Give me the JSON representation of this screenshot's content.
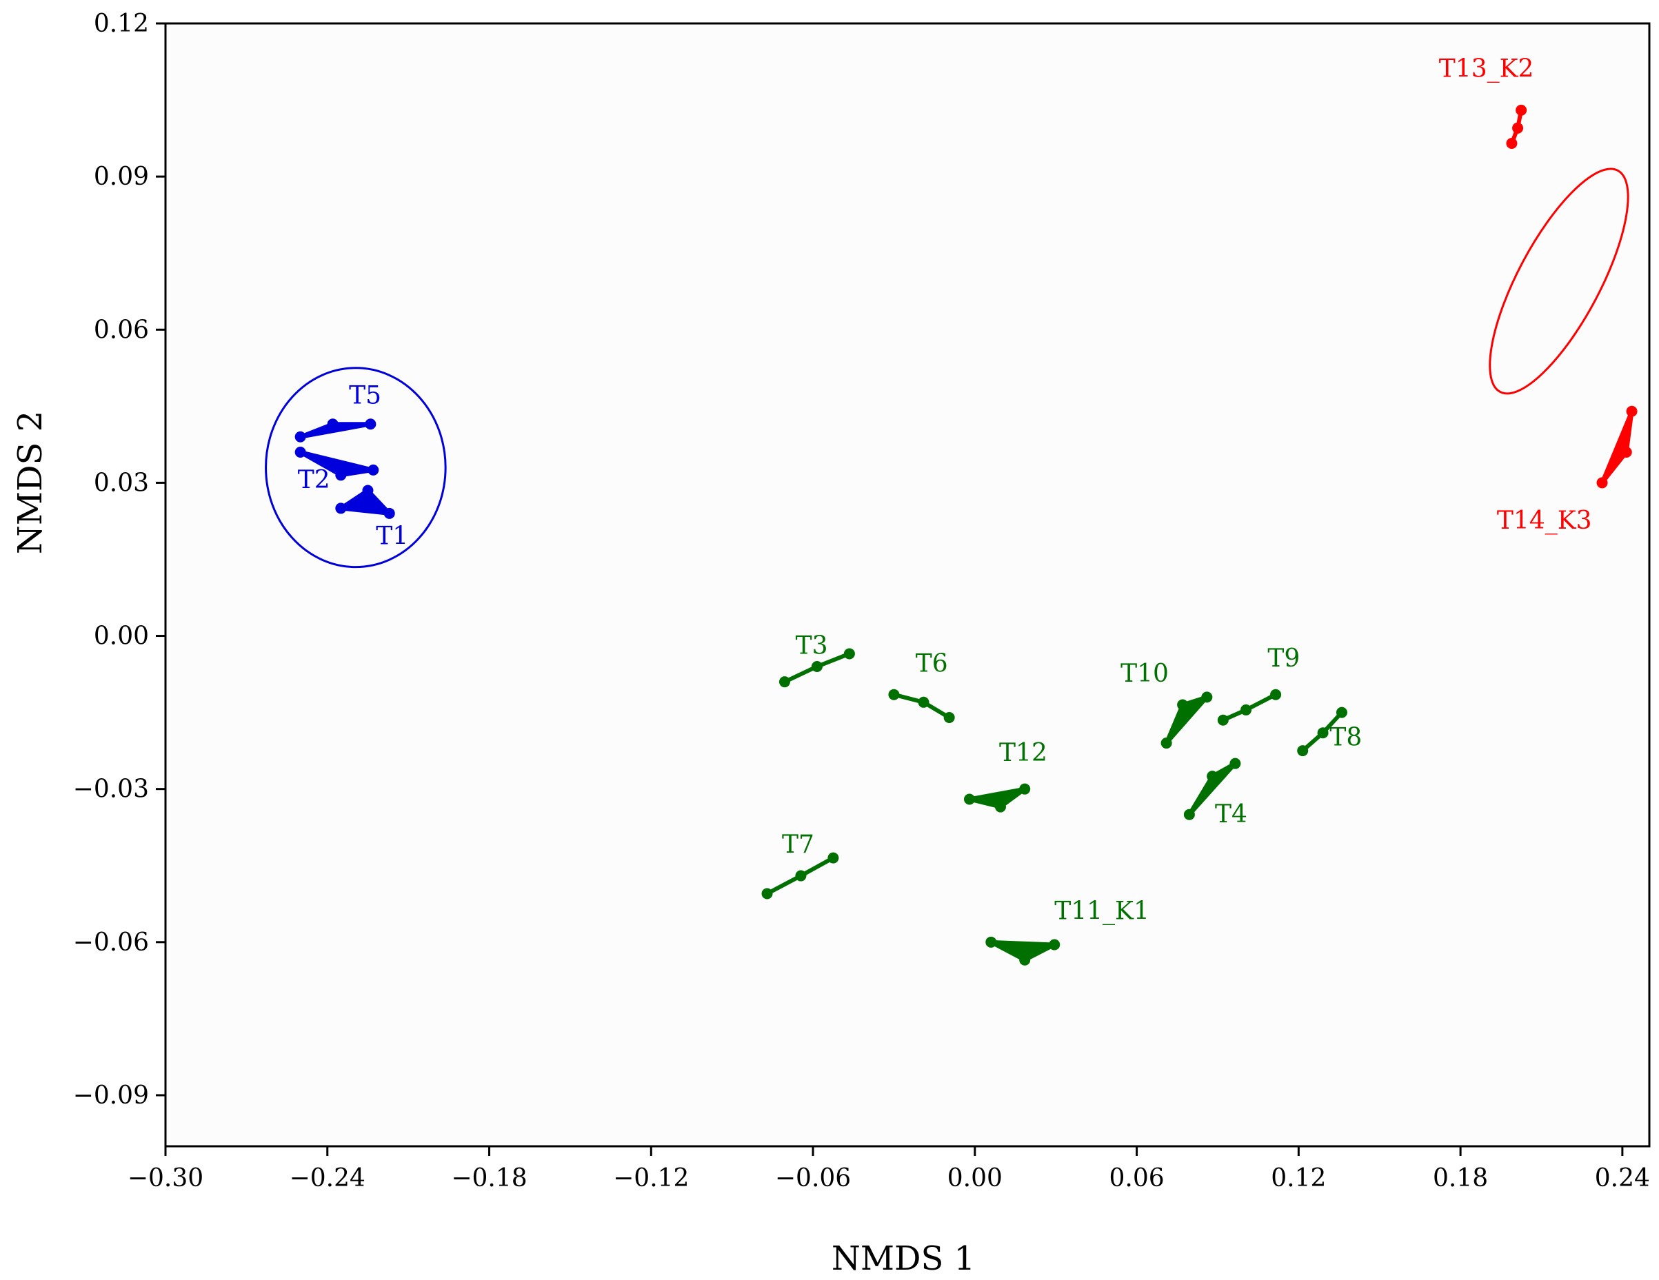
{
  "chart_data": {
    "type": "scatter",
    "title": "",
    "xlabel": "NMDS 1",
    "ylabel": "NMDS 2",
    "xlim": [
      -0.3,
      0.25
    ],
    "ylim": [
      -0.1,
      0.12
    ],
    "xticks": [
      -0.3,
      -0.24,
      -0.18,
      -0.12,
      -0.06,
      0.0,
      0.06,
      0.12,
      0.18,
      0.24
    ],
    "xtick_labels": [
      "−0.30",
      "−0.24",
      "−0.18",
      "−0.12",
      "−0.06",
      "0.00",
      "0.06",
      "0.12",
      "0.18",
      "0.24"
    ],
    "yticks": [
      0.12,
      0.09,
      0.06,
      0.03,
      0.0,
      -0.03,
      -0.06,
      -0.09
    ],
    "ytick_labels": [
      "0.12",
      "0.09",
      "0.06",
      "0.03",
      "0.00",
      "−0.03",
      "−0.06",
      "−0.09"
    ],
    "grid": false,
    "colors": {
      "blue": "#0000dd",
      "green": "#007000",
      "red": "#ff0000"
    },
    "series": [
      {
        "name": "T1",
        "color": "green_blue",
        "shape": "triangle",
        "points": [
          [
            -0.235,
            0.025
          ],
          [
            -0.225,
            0.0285
          ],
          [
            -0.217,
            0.024
          ]
        ],
        "label_at": [
          -0.222,
          0.018
        ]
      },
      {
        "name": "T2",
        "color": "blue",
        "shape": "triangle",
        "points": [
          [
            -0.25,
            0.036
          ],
          [
            -0.235,
            0.0315
          ],
          [
            -0.223,
            0.0325
          ]
        ],
        "label_at": [
          -0.251,
          0.029
        ]
      },
      {
        "name": "T5",
        "color": "blue",
        "shape": "triangle",
        "points": [
          [
            -0.25,
            0.039
          ],
          [
            -0.238,
            0.0415
          ],
          [
            -0.224,
            0.0415
          ]
        ],
        "label_at": [
          -0.232,
          0.0455
        ]
      },
      {
        "name": "T13_K2",
        "color": "red",
        "shape": "line",
        "points": [
          [
            0.199,
            0.0965
          ],
          [
            0.2012,
            0.0995
          ],
          [
            0.2025,
            0.103
          ]
        ],
        "label_at": [
          0.172,
          0.1095
        ]
      },
      {
        "name": "T14_K3",
        "color": "red",
        "shape": "triangle",
        "points": [
          [
            0.2325,
            0.03
          ],
          [
            0.2415,
            0.036
          ],
          [
            0.2435,
            0.044
          ]
        ],
        "label_at": [
          0.1935,
          0.021
        ]
      },
      {
        "name": "T3",
        "color": "green",
        "shape": "line",
        "points": [
          [
            -0.0705,
            -0.009
          ],
          [
            -0.0585,
            -0.006
          ],
          [
            -0.0465,
            -0.0035
          ]
        ],
        "label_at": [
          -0.0665,
          -0.0035
        ]
      },
      {
        "name": "T6",
        "color": "green",
        "shape": "line",
        "points": [
          [
            -0.03,
            -0.0115
          ],
          [
            -0.019,
            -0.013
          ],
          [
            -0.0095,
            -0.016
          ]
        ],
        "label_at": [
          -0.022,
          -0.007
        ]
      },
      {
        "name": "T10",
        "color": "green",
        "shape": "triangle",
        "points": [
          [
            0.071,
            -0.021
          ],
          [
            0.077,
            -0.0135
          ],
          [
            0.086,
            -0.012
          ]
        ],
        "label_at": [
          0.054,
          -0.009
        ]
      },
      {
        "name": "T9",
        "color": "green",
        "shape": "line",
        "points": [
          [
            0.092,
            -0.0165
          ],
          [
            0.1005,
            -0.0145
          ],
          [
            0.1115,
            -0.0115
          ]
        ],
        "label_at": [
          0.1085,
          -0.006
        ]
      },
      {
        "name": "T8",
        "color": "green",
        "shape": "line",
        "points": [
          [
            0.1215,
            -0.0225
          ],
          [
            0.129,
            -0.019
          ],
          [
            0.136,
            -0.015
          ]
        ],
        "label_at": [
          0.1315,
          -0.0215
        ]
      },
      {
        "name": "T12",
        "color": "green",
        "shape": "triangle",
        "points": [
          [
            -0.002,
            -0.032
          ],
          [
            0.0095,
            -0.0335
          ],
          [
            0.0185,
            -0.03
          ]
        ],
        "label_at": [
          0.009,
          -0.0245
        ]
      },
      {
        "name": "T4",
        "color": "green",
        "shape": "triangle",
        "points": [
          [
            0.0795,
            -0.035
          ],
          [
            0.088,
            -0.0275
          ],
          [
            0.0965,
            -0.025
          ]
        ],
        "label_at": [
          0.089,
          -0.0365
        ]
      },
      {
        "name": "T7",
        "color": "green",
        "shape": "line",
        "points": [
          [
            -0.077,
            -0.0505
          ],
          [
            -0.0645,
            -0.047
          ],
          [
            -0.0525,
            -0.0435
          ]
        ],
        "label_at": [
          -0.0715,
          -0.0425
        ]
      },
      {
        "name": "T11_K1",
        "color": "green",
        "shape": "triangle",
        "points": [
          [
            0.006,
            -0.06
          ],
          [
            0.0185,
            -0.0635
          ],
          [
            0.0295,
            -0.0605
          ]
        ],
        "label_at": [
          0.0295,
          -0.0555
        ]
      }
    ],
    "ellipses": [
      {
        "color": "blue",
        "center": [
          -0.2295,
          0.033
        ],
        "rx": 0.0333,
        "ry": 0.0195,
        "rotation_deg": 0
      },
      {
        "color": "red",
        "center": [
          0.2165,
          0.0695
        ],
        "rx": 0.0315,
        "ry": 0.0105,
        "rotation_deg": -62
      }
    ]
  }
}
